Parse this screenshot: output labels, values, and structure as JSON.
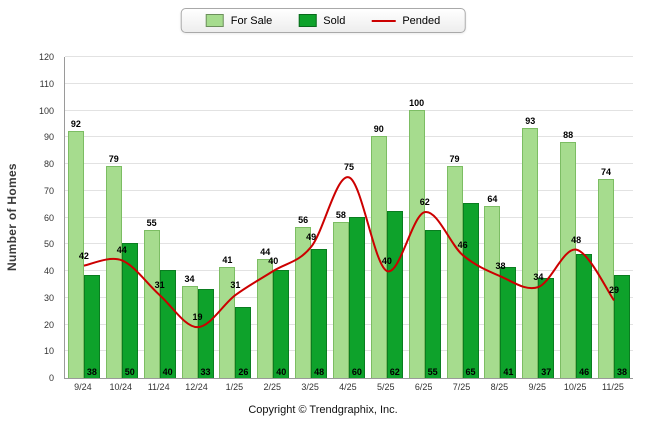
{
  "footer": {
    "copyright": "Copyright © Trendgraphix, Inc."
  },
  "chart_data": {
    "type": "bar",
    "categories": [
      "9/24",
      "10/24",
      "11/24",
      "12/24",
      "1/25",
      "2/25",
      "3/25",
      "4/25",
      "5/25",
      "6/25",
      "7/25",
      "8/25",
      "9/25",
      "10/25",
      "11/25"
    ],
    "series": [
      {
        "name": "For Sale",
        "type": "bar",
        "color": "#a6dc8e",
        "values": [
          92,
          79,
          55,
          34,
          41,
          44,
          56,
          58,
          90,
          100,
          79,
          64,
          93,
          88,
          74
        ]
      },
      {
        "name": "Sold",
        "type": "bar",
        "color": "#0ea22b",
        "values": [
          38,
          50,
          40,
          33,
          26,
          40,
          48,
          60,
          62,
          55,
          65,
          41,
          37,
          46,
          38
        ]
      },
      {
        "name": "Pended",
        "type": "line",
        "color": "#cc0000",
        "values": [
          42,
          44,
          31,
          19,
          31,
          40,
          49,
          75,
          40,
          62,
          46,
          38,
          34,
          48,
          29
        ]
      }
    ],
    "title": "",
    "xlabel": "",
    "ylabel": "Number of Homes",
    "ylim": [
      0,
      120
    ],
    "ytick_step": 10,
    "grid": true,
    "legend_position": "top"
  }
}
